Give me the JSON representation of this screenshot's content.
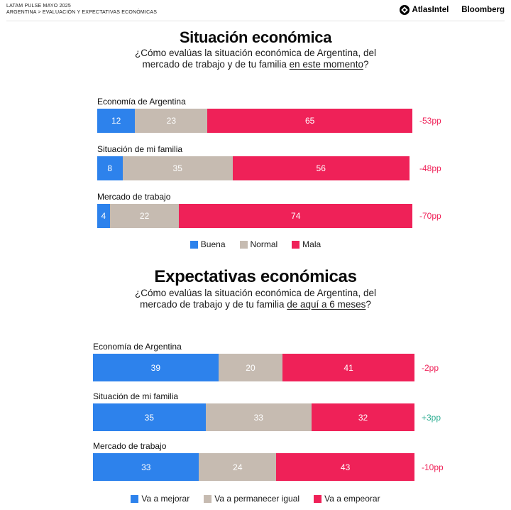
{
  "header": {
    "line1": "LATAM PULSE MAYO 2025",
    "line2": "ARGENTINA > EVALUACIÓN Y EXPECTATIVAS ECONÓMICAS",
    "brand1": "AtlasIntel",
    "brand2": "Bloomberg"
  },
  "colors": {
    "blue": "#2D82EC",
    "tan": "#C6BBB1",
    "pink": "#EF2158",
    "teal": "#2FAE93"
  },
  "chart_data": [
    {
      "type": "bar",
      "stacked": true,
      "orientation": "horizontal",
      "title": "Situación económica",
      "subtitle_prefix": "¿Cómo evalúas la situación económica de Argentina, del\nmercado de trabajo y de tu familia ",
      "subtitle_underline": "en este momento",
      "subtitle_suffix": "?",
      "categories": [
        "Economía de Argentina",
        "Situación de mi familia",
        "Mercado de trabajo"
      ],
      "series": [
        {
          "name": "Buena",
          "color_key": "blue",
          "values": [
            12,
            8,
            4
          ]
        },
        {
          "name": "Normal",
          "color_key": "tan",
          "values": [
            23,
            35,
            22
          ]
        },
        {
          "name": "Mala",
          "color_key": "pink",
          "values": [
            65,
            56,
            74
          ]
        }
      ],
      "deltas": [
        "-53pp",
        "-48pp",
        "-70pp"
      ],
      "xlim": [
        0,
        100
      ],
      "legend_position": "bottom"
    },
    {
      "type": "bar",
      "stacked": true,
      "orientation": "horizontal",
      "title": "Expectativas económicas",
      "subtitle_prefix": "¿Cómo evalúas la situación económica de Argentina, del\nmercado de trabajo y de tu familia ",
      "subtitle_underline": "de aquí a 6 meses",
      "subtitle_suffix": "?",
      "categories": [
        "Economía de Argentina",
        "Situación de mi familia",
        "Mercado de trabajo"
      ],
      "series": [
        {
          "name": "Va a mejorar",
          "color_key": "blue",
          "values": [
            39,
            35,
            33
          ]
        },
        {
          "name": "Va a permanecer igual",
          "color_key": "tan",
          "values": [
            20,
            33,
            24
          ]
        },
        {
          "name": "Va a empeorar",
          "color_key": "pink",
          "values": [
            41,
            32,
            43
          ]
        }
      ],
      "deltas": [
        "-2pp",
        "+3pp",
        "-10pp"
      ],
      "xlim": [
        0,
        100
      ],
      "legend_position": "bottom"
    }
  ]
}
